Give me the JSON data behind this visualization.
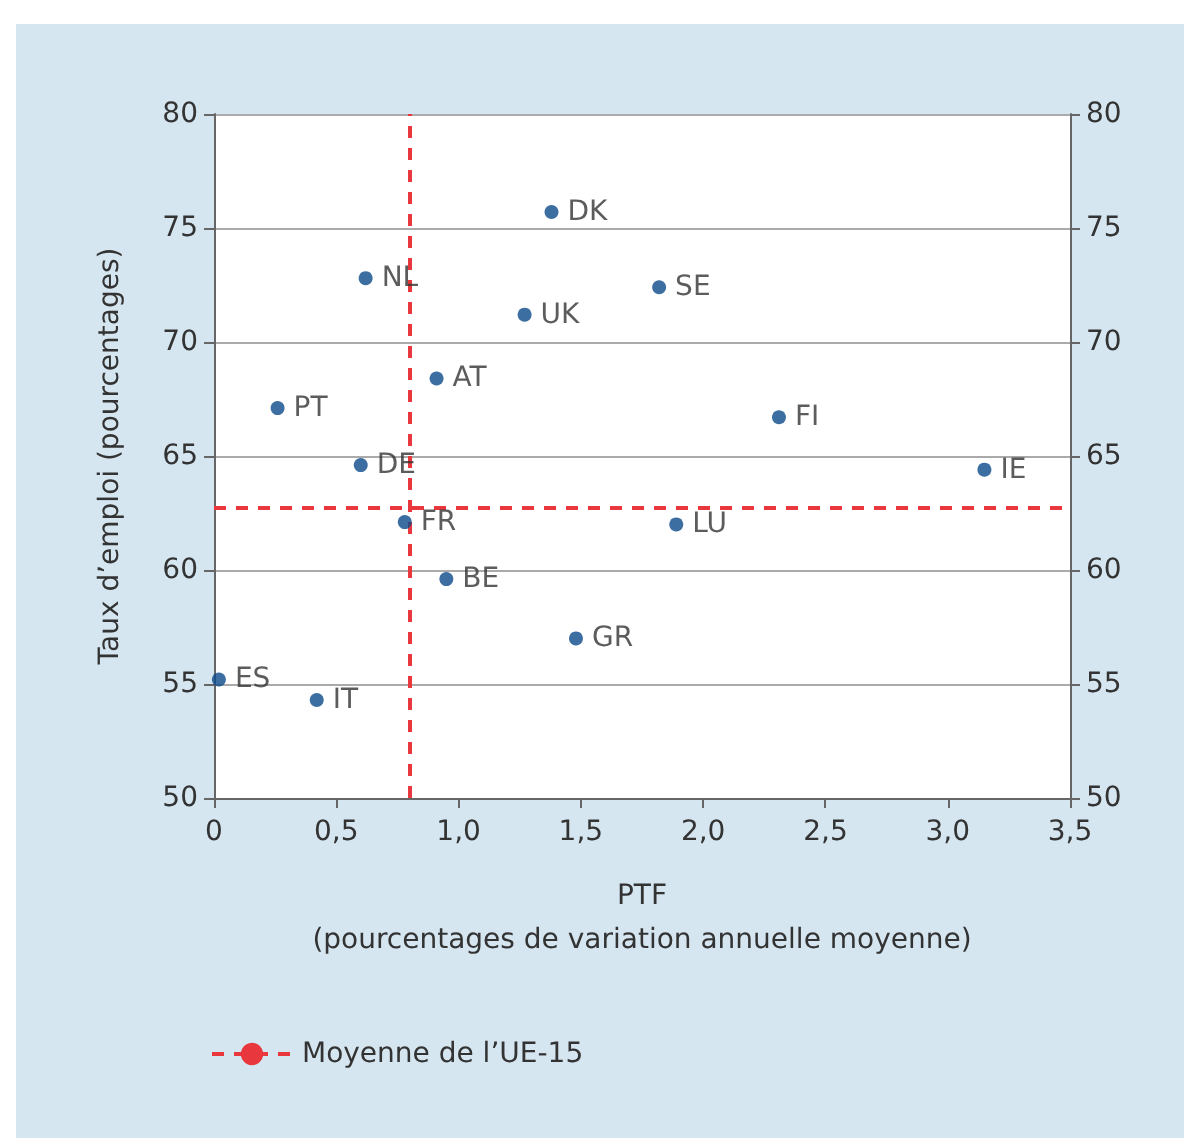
{
  "chart_data": {
    "type": "scatter",
    "xlabel": "PTF\n(pourcentages de variation annuelle moyenne)",
    "ylabel": "Taux d’emploi (pourcentages)",
    "series": [
      {
        "color": "#0b4a8b",
        "x": [
          0.02,
          0.42,
          0.26,
          0.6,
          0.62,
          0.78,
          0.91,
          0.95,
          1.27,
          1.38,
          1.48,
          1.82,
          1.89,
          2.31,
          3.15
        ],
        "values": [
          55.2,
          54.3,
          67.1,
          64.6,
          72.8,
          62.1,
          68.4,
          59.6,
          71.2,
          75.7,
          57.0,
          72.4,
          62.0,
          66.7,
          64.4
        ]
      }
    ],
    "annotations": [
      {
        "text": "ES",
        "x": 0.02,
        "y": 55.2
      },
      {
        "text": "IT",
        "x": 0.42,
        "y": 54.3
      },
      {
        "text": "PT",
        "x": 0.26,
        "y": 67.1
      },
      {
        "text": "DE",
        "x": 0.6,
        "y": 64.6
      },
      {
        "text": "NL",
        "x": 0.62,
        "y": 72.8
      },
      {
        "text": "FR",
        "x": 0.78,
        "y": 62.1
      },
      {
        "text": "AT",
        "x": 0.91,
        "y": 68.4
      },
      {
        "text": "BE",
        "x": 0.95,
        "y": 59.6
      },
      {
        "text": "UK",
        "x": 1.27,
        "y": 71.2
      },
      {
        "text": "DK",
        "x": 1.38,
        "y": 75.7
      },
      {
        "text": "GR",
        "x": 1.48,
        "y": 57.0
      },
      {
        "text": "SE",
        "x": 1.82,
        "y": 72.4
      },
      {
        "text": "LU",
        "x": 1.89,
        "y": 62.0
      },
      {
        "text": "FI",
        "x": 2.31,
        "y": 66.7
      },
      {
        "text": "IE",
        "x": 3.15,
        "y": 64.4
      }
    ],
    "ref_lines": [
      {
        "axis": "x",
        "value": 0.8,
        "label": "Moyenne de l’UE-15",
        "color": "#e8383d",
        "line_style": "dashed"
      },
      {
        "axis": "y",
        "value": 62.7,
        "color": "#e8383d",
        "line_style": "dashed"
      }
    ],
    "xlim": [
      0,
      3.5
    ],
    "xticks": [
      0,
      {
        "value": 0.5,
        "label": "0,5"
      },
      {
        "value": 1,
        "label": "1,0"
      },
      {
        "value": 1.5,
        "label": "1,5"
      },
      {
        "value": 2,
        "label": "2,0"
      },
      {
        "value": 2.5,
        "label": "2,5"
      },
      {
        "value": 3,
        "label": "3,0"
      },
      {
        "value": 3.5,
        "label": "3,5"
      }
    ],
    "ylim": [
      50,
      80
    ],
    "yticks": [
      50,
      55,
      60,
      65,
      70,
      75,
      80
    ],
    "y2lim": [
      50,
      80
    ],
    "y2ticks": [
      50,
      55,
      60,
      65,
      70,
      75,
      80
    ],
    "grid": "y",
    "legend": "bottom left",
    "marker": "circle"
  }
}
